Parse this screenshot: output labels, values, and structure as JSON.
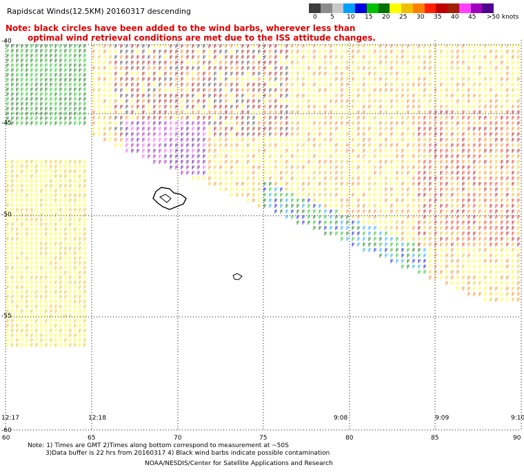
{
  "header": {
    "title": "Rapidscat Winds(12.5KM) 20160317 descending",
    "note_line1": "Note: black circles have been added to the wind barbs, wherever less than",
    "note_line2": "optimal wind retrieval conditions are met due to the ISS attitude changes."
  },
  "color_scale": {
    "colors": [
      "#3c3c3c",
      "#8c8c8c",
      "#c8c8c8",
      "#00a0ff",
      "#0000e0",
      "#00c000",
      "#007000",
      "#ffff00",
      "#f0c000",
      "#ff8000",
      "#ff2000",
      "#c00000",
      "#a02000",
      "#ff40ff",
      "#a000c0",
      "#500090"
    ],
    "labels": [
      "0",
      "5",
      "10",
      "15",
      "20",
      "25",
      "30",
      "35",
      "40",
      "45",
      ">50 knots"
    ]
  },
  "axes": {
    "lat_labels": [
      "-40",
      "-45",
      "-50",
      "-55",
      "-60"
    ],
    "lon_labels": [
      "60",
      "65",
      "70",
      "75",
      "80",
      "85",
      "90"
    ]
  },
  "time_labels": [
    "12:17",
    "12:18",
    "9:08",
    "9:09",
    "9:10"
  ],
  "footer": {
    "line1": "Note: 1) Times are GMT 2)Times along bottom correspond to measurement at ~50S",
    "line2": "3)Data buffer is 22 hrs from 20160317 4) Black wind barbs indicate possible contamination",
    "line3": "NOAA/NESDIS/Center for Satellite Applications and Research"
  }
}
